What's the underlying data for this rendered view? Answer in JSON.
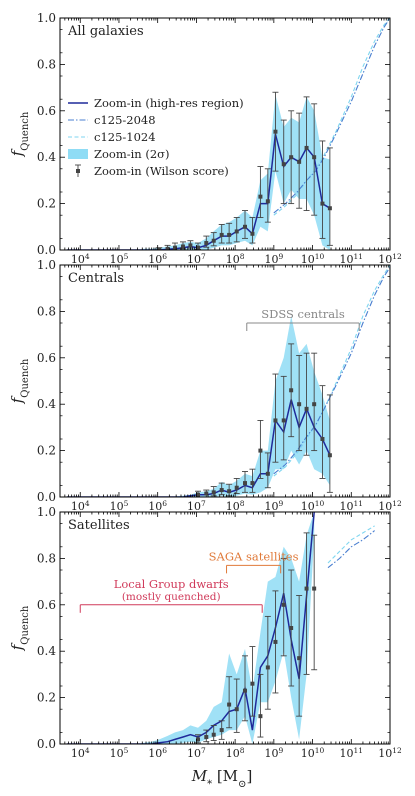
{
  "figure": {
    "xlabel": "M_* [M_⊙]",
    "ylabel": "f_Quench"
  },
  "legend": [
    {
      "label": "Zoom-in (high-res region)",
      "style": "solid",
      "color": "#2a2a9a"
    },
    {
      "label": "c125-2048",
      "style": "dashdot",
      "color": "#5a8fd8"
    },
    {
      "label": "c125-1024",
      "style": "dashed",
      "color": "#8ee0f2"
    },
    {
      "label": "Zoom-in (2σ)",
      "style": "band",
      "color": "#8fdcf5"
    },
    {
      "label": "Zoom-in (Wilson score)",
      "style": "errorbar",
      "color": "#444444"
    }
  ],
  "colors": {
    "zoom_line": "#1f2a9a",
    "c2048": "#4a7fd0",
    "c1024": "#7fd6f0",
    "band": "#8fdcf5",
    "points": "#444444",
    "sdss": "#888888",
    "saga": "#e07a3a",
    "lg": "#d03a5a"
  },
  "chart_data": [
    {
      "panel": "All galaxies",
      "type": "line",
      "xscale": "log",
      "xlim": [
        3000.0,
        1000000000000.0
      ],
      "ylim": [
        0,
        1
      ],
      "yticks": [
        0.0,
        0.2,
        0.4,
        0.6,
        0.8,
        1.0
      ],
      "xtick_labels": [
        "10^4",
        "10^5",
        "10^6",
        "10^7",
        "10^8",
        "10^9",
        "10^10",
        "10^11",
        "10^12"
      ],
      "zoom_in": {
        "x": [
          4500.0,
          7000.0,
          11000.0,
          18000.0,
          28000.0,
          45000.0,
          70000.0,
          110000.0,
          180000.0,
          280000.0,
          450000.0,
          700000.0,
          1100000.0,
          1800000.0,
          2800000.0,
          4500000.0,
          7000000.0,
          11000000.0,
          18000000.0,
          28000000.0,
          45000000.0,
          70000000.0,
          110000000.0,
          180000000.0,
          280000000.0,
          450000000.0,
          700000000.0,
          1100000000.0,
          1800000000.0,
          2800000000.0,
          4500000000.0,
          7000000000.0,
          11000000000.0,
          18000000000.0,
          28000000000.0
        ],
        "y": [
          0,
          0,
          0,
          0,
          0,
          0,
          0,
          0,
          0,
          0,
          0,
          0,
          0,
          0.003,
          0.005,
          0.01,
          0.015,
          0.01,
          0.02,
          0.04,
          0.06,
          0.06,
          0.08,
          0.1,
          0.07,
          0.2,
          0.2,
          0.5,
          0.36,
          0.4,
          0.38,
          0.44,
          0.4,
          0.2,
          0.18
        ],
        "band_low": [
          0,
          0,
          0,
          0,
          0,
          0,
          0,
          0,
          0,
          0,
          0,
          0,
          0,
          0,
          0,
          0,
          0,
          0,
          0,
          0.01,
          0.02,
          0.02,
          0.03,
          0.04,
          0.02,
          0.1,
          0.08,
          0.34,
          0.2,
          0.26,
          0.22,
          0.22,
          0.15,
          0.02,
          0
        ],
        "band_high": [
          0,
          0,
          0,
          0,
          0,
          0,
          0,
          0,
          0,
          0,
          0.005,
          0.005,
          0.01,
          0.015,
          0.02,
          0.03,
          0.035,
          0.03,
          0.05,
          0.08,
          0.11,
          0.12,
          0.14,
          0.17,
          0.14,
          0.3,
          0.33,
          0.67,
          0.53,
          0.57,
          0.55,
          0.66,
          0.6,
          0.4,
          0.39
        ]
      },
      "points": {
        "x": [
          1100000.0,
          1800000.0,
          2800000.0,
          4500000.0,
          7000000.0,
          11000000.0,
          18000000.0,
          28000000.0,
          45000000.0,
          70000000.0,
          110000000.0,
          180000000.0,
          280000000.0,
          450000000.0,
          700000000.0,
          1100000000.0,
          1800000000.0,
          2800000000.0,
          4500000000.0,
          7000000000.0,
          11000000000.0,
          18000000000.0,
          28000000000.0
        ],
        "y": [
          0,
          0.005,
          0.01,
          0.015,
          0.02,
          0.01,
          0.03,
          0.04,
          0.065,
          0.065,
          0.08,
          0.1,
          0.07,
          0.23,
          0.21,
          0.51,
          0.37,
          0.4,
          0.38,
          0.44,
          0.4,
          0.2,
          0.18
        ],
        "err_low": [
          0,
          0,
          0,
          0.005,
          0.008,
          0.003,
          0.012,
          0.018,
          0.03,
          0.03,
          0.035,
          0.05,
          0.03,
          0.14,
          0.12,
          0.34,
          0.2,
          0.2,
          0.18,
          0.17,
          0.15,
          0.05,
          0.02
        ],
        "err_high": [
          0.01,
          0.02,
          0.03,
          0.035,
          0.04,
          0.03,
          0.06,
          0.075,
          0.11,
          0.115,
          0.14,
          0.17,
          0.14,
          0.36,
          0.35,
          0.68,
          0.56,
          0.6,
          0.59,
          0.66,
          0.63,
          0.47,
          0.44
        ]
      },
      "c2048": {
        "x": [
          1000000000.0,
          2000000000.0,
          4000000000.0,
          7000000000.0,
          12000000000.0,
          20000000000.0,
          40000000000.0,
          100000000000.0,
          200000000000.0,
          400000000000.0,
          700000000000.0,
          1000000000000.0
        ],
        "y": [
          0.16,
          0.2,
          0.25,
          0.3,
          0.34,
          0.4,
          0.5,
          0.64,
          0.76,
          0.88,
          0.96,
          1.0
        ]
      },
      "c1024": {
        "x": [
          1000000000.0,
          2000000000.0,
          4000000000.0,
          7000000000.0,
          12000000000.0,
          20000000000.0,
          40000000000.0,
          100000000000.0,
          200000000000.0,
          400000000000.0,
          700000000000.0,
          1000000000000.0
        ],
        "y": [
          0.15,
          0.19,
          0.24,
          0.3,
          0.35,
          0.41,
          0.51,
          0.66,
          0.79,
          0.9,
          0.97,
          1.0
        ]
      },
      "annotation": null
    },
    {
      "panel": "Centrals",
      "type": "line",
      "xscale": "log",
      "xlim": [
        3000.0,
        1000000000000.0
      ],
      "ylim": [
        0,
        1
      ],
      "yticks": [
        0.0,
        0.2,
        0.4,
        0.6,
        0.8,
        1.0
      ],
      "xtick_labels": [
        "10^4",
        "10^5",
        "10^6",
        "10^7",
        "10^8",
        "10^9",
        "10^10",
        "10^11",
        "10^12"
      ],
      "zoom_in": {
        "x": [
          4500.0,
          7000.0,
          11000.0,
          18000.0,
          28000.0,
          45000.0,
          70000.0,
          110000.0,
          180000.0,
          280000.0,
          450000.0,
          700000.0,
          1100000.0,
          1800000.0,
          2800000.0,
          4500000.0,
          7000000.0,
          11000000.0,
          18000000.0,
          28000000.0,
          45000000.0,
          70000000.0,
          110000000.0,
          180000000.0,
          280000000.0,
          450000000.0,
          700000000.0,
          1100000000.0,
          1800000000.0,
          2800000000.0,
          4500000000.0,
          7000000000.0,
          11000000000.0,
          18000000000.0,
          28000000000.0
        ],
        "y": [
          0,
          0,
          0,
          0,
          0,
          0,
          0,
          0,
          0,
          0,
          0,
          0,
          0,
          0,
          0,
          0,
          0.005,
          0.01,
          0.01,
          0.015,
          0.03,
          0.02,
          0.03,
          0.05,
          0.04,
          0.1,
          0.1,
          0.33,
          0.28,
          0.42,
          0.3,
          0.38,
          0.3,
          0.25,
          0.18
        ],
        "band_low": [
          0,
          0,
          0,
          0,
          0,
          0,
          0,
          0,
          0,
          0,
          0,
          0,
          0,
          0,
          0,
          0,
          0,
          0,
          0,
          0,
          0.005,
          0,
          0.005,
          0.015,
          0.01,
          0.02,
          0.04,
          0.12,
          0.12,
          0.2,
          0.14,
          0.2,
          0.12,
          0.1,
          0.05
        ],
        "band_high": [
          0,
          0,
          0,
          0,
          0,
          0,
          0,
          0,
          0,
          0,
          0,
          0,
          0,
          0,
          0.002,
          0.005,
          0.01,
          0.02,
          0.025,
          0.035,
          0.065,
          0.05,
          0.07,
          0.1,
          0.09,
          0.2,
          0.2,
          0.5,
          0.6,
          0.78,
          0.62,
          0.66,
          0.54,
          0.44,
          0.33
        ]
      },
      "points": {
        "x": [
          11000000.0,
          18000000.0,
          28000000.0,
          45000000.0,
          70000000.0,
          110000000.0,
          180000000.0,
          280000000.0,
          450000000.0,
          700000000.0,
          1100000000.0,
          1800000000.0,
          2800000000.0,
          4500000000.0,
          7000000000.0,
          11000000000.0,
          18000000000.0,
          28000000000.0
        ],
        "y": [
          0.01,
          0.015,
          0.02,
          0.03,
          0.025,
          0.04,
          0.06,
          0.06,
          0.2,
          0.1,
          0.33,
          0.33,
          0.46,
          0.4,
          0.38,
          0.4,
          0.25,
          0.18
        ],
        "err_low": [
          0,
          0,
          0.005,
          0.01,
          0.005,
          0.015,
          0.02,
          0.02,
          0.08,
          0.04,
          0.15,
          0.16,
          0.26,
          0.2,
          0.18,
          0.2,
          0.08,
          0.02
        ],
        "err_high": [
          0.025,
          0.03,
          0.045,
          0.06,
          0.055,
          0.08,
          0.11,
          0.12,
          0.33,
          0.19,
          0.53,
          0.52,
          0.66,
          0.61,
          0.62,
          0.62,
          0.48,
          0.44
        ]
      },
      "c2048": {
        "x": [
          1000000000.0,
          2000000000.0,
          4000000000.0,
          7000000000.0,
          12000000000.0,
          20000000000.0,
          40000000000.0,
          100000000000.0,
          200000000000.0,
          400000000000.0,
          700000000000.0,
          1000000000000.0
        ],
        "y": [
          0.1,
          0.14,
          0.2,
          0.26,
          0.31,
          0.38,
          0.48,
          0.62,
          0.75,
          0.87,
          0.95,
          0.99
        ]
      },
      "c1024": {
        "x": [
          1000000000.0,
          2000000000.0,
          4000000000.0,
          7000000000.0,
          12000000000.0,
          20000000000.0,
          40000000000.0,
          100000000000.0,
          200000000000.0,
          400000000000.0,
          700000000000.0,
          1000000000000.0
        ],
        "y": [
          0.09,
          0.13,
          0.19,
          0.25,
          0.31,
          0.38,
          0.49,
          0.64,
          0.78,
          0.89,
          0.96,
          1.0
        ]
      },
      "annotation": {
        "label": "SDSS centrals",
        "x_range": [
          200000000.0,
          160000000000.0
        ],
        "y": 0.75,
        "color_key": "sdss"
      }
    },
    {
      "panel": "Satellites",
      "type": "line",
      "xscale": "log",
      "xlim": [
        3000.0,
        1000000000000.0
      ],
      "ylim": [
        0,
        1
      ],
      "yticks": [
        0.0,
        0.2,
        0.4,
        0.6,
        0.8,
        1.0
      ],
      "xtick_labels": [
        "10^4",
        "10^5",
        "10^6",
        "10^7",
        "10^8",
        "10^9",
        "10^10",
        "10^11",
        "10^12"
      ],
      "zoom_in": {
        "x": [
          4500.0,
          7000.0,
          11000.0,
          18000.0,
          28000.0,
          45000.0,
          70000.0,
          110000.0,
          180000.0,
          280000.0,
          450000.0,
          700000.0,
          1100000.0,
          1800000.0,
          2800000.0,
          4500000.0,
          7000000.0,
          11000000.0,
          18000000.0,
          28000000.0,
          45000000.0,
          70000000.0,
          110000000.0,
          180000000.0,
          280000000.0,
          450000000.0,
          700000000.0,
          1100000000.0,
          1800000000.0,
          2800000000.0,
          4500000000.0,
          7000000000.0,
          11000000000.0
        ],
        "y": [
          0,
          0,
          0,
          0,
          0,
          0,
          0,
          0,
          0,
          0,
          0,
          0,
          0.005,
          0.01,
          0.02,
          0.03,
          0.04,
          0.03,
          0.05,
          0.08,
          0.1,
          0.14,
          0.15,
          0.24,
          0.06,
          0.33,
          0.38,
          0.5,
          0.65,
          0.45,
          0.28,
          0.64,
          1.0
        ],
        "band_low": [
          0,
          0,
          0,
          0,
          0,
          0,
          0,
          0,
          0,
          0,
          0,
          0,
          0,
          0,
          0,
          0.005,
          0.01,
          0.005,
          0.02,
          0.03,
          0.04,
          0.06,
          0.06,
          0.12,
          0,
          0.18,
          0.18,
          0.27,
          0.4,
          0.2,
          0.02,
          0.3,
          0.9
        ],
        "band_high": [
          0,
          0,
          0,
          0,
          0,
          0,
          0,
          0,
          0,
          0,
          0.005,
          0.01,
          0.02,
          0.035,
          0.05,
          0.06,
          0.08,
          0.07,
          0.1,
          0.16,
          0.18,
          0.39,
          0.3,
          0.41,
          0.23,
          0.48,
          0.7,
          0.72,
          0.85,
          0.8,
          0.7,
          0.9,
          1.0
        ]
      },
      "points": {
        "x": [
          11000000.0,
          18000000.0,
          28000000.0,
          45000000.0,
          70000000.0,
          110000000.0,
          180000000.0,
          280000000.0,
          450000000.0,
          700000000.0,
          1100000000.0,
          1800000000.0,
          2800000000.0,
          4500000000.0,
          7000000000.0,
          11000000000.0
        ],
        "y": [
          0.02,
          0.03,
          0.04,
          0.06,
          0.17,
          0.15,
          0.23,
          0.26,
          0.12,
          0.33,
          0.44,
          0.6,
          0.5,
          0.37,
          0.67,
          0.67
        ],
        "err_low": [
          0.005,
          0.01,
          0.015,
          0.02,
          0.07,
          0.05,
          0.1,
          0.12,
          0.03,
          0.15,
          0.22,
          0.38,
          0.25,
          0.12,
          0.3,
          0.32
        ],
        "err_high": [
          0.04,
          0.06,
          0.08,
          0.1,
          0.29,
          0.28,
          0.38,
          0.42,
          0.3,
          0.55,
          0.66,
          0.8,
          0.75,
          0.64,
          0.91,
          0.9
        ]
      },
      "c2048": {
        "x": [
          25000000000.0,
          50000000000.0,
          100000000000.0,
          200000000000.0,
          400000000000.0
        ],
        "y": [
          0.76,
          0.8,
          0.85,
          0.88,
          0.92
        ]
      },
      "c1024": {
        "x": [
          25000000000.0,
          50000000000.0,
          100000000000.0,
          200000000000.0,
          400000000000.0
        ],
        "y": [
          0.78,
          0.83,
          0.88,
          0.91,
          0.94
        ]
      },
      "annotations": [
        {
          "label": "SAGA satellites",
          "x_range": [
            60000000.0,
            1500000000.0
          ],
          "y": 0.77,
          "color_key": "saga"
        },
        {
          "label": "Local Group dwarfs",
          "label2": "(mostly quenched)",
          "x_range": [
            10000.0,
            500000000.0
          ],
          "y": 0.6,
          "color_key": "lg"
        }
      ]
    }
  ]
}
